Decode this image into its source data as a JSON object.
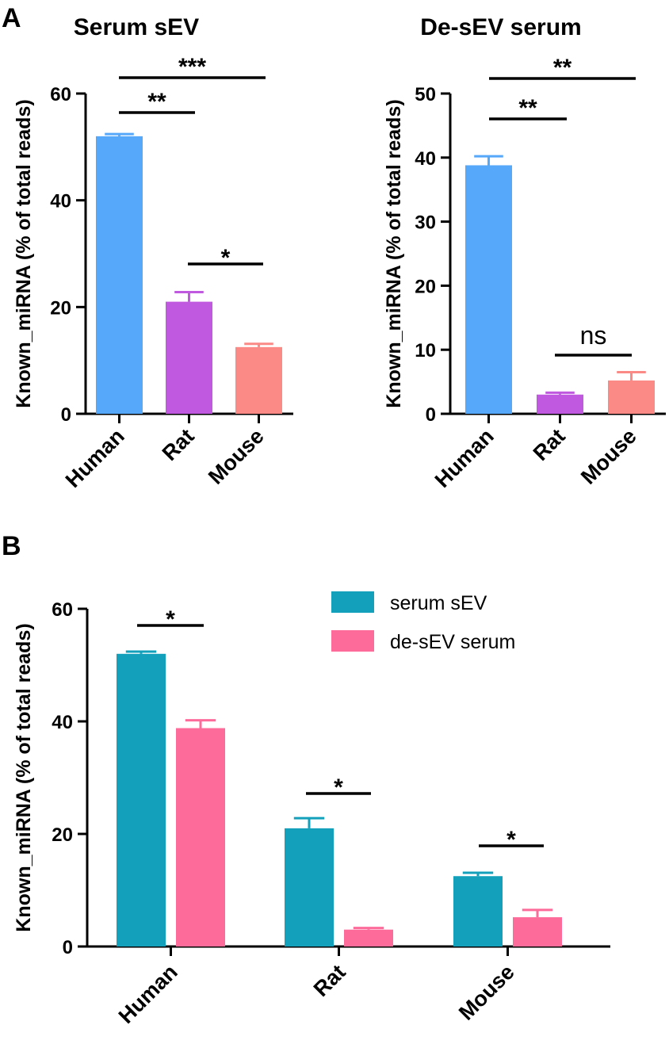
{
  "panels": {
    "a": "A",
    "b": "B"
  },
  "chart_data": [
    {
      "type": "bar",
      "title": "Serum sEV",
      "xlabel": "",
      "ylabel": "Known_miRNA (% of total reads)",
      "ylim": [
        0,
        60
      ],
      "yticks": [
        "0",
        "20",
        "40",
        "60"
      ],
      "categories": [
        "Human",
        "Rat",
        "Mouse"
      ],
      "values": [
        52,
        21,
        12.5
      ],
      "errors": [
        0.4,
        1.8,
        0.6
      ],
      "colors": [
        "#55a8fa",
        "#c058e0",
        "#fb8a86"
      ],
      "comparisons": [
        {
          "from": 0,
          "to": 1,
          "label": "**"
        },
        {
          "from": 0,
          "to": 2,
          "label": "***"
        },
        {
          "from": 1,
          "to": 2,
          "label": "*"
        }
      ]
    },
    {
      "type": "bar",
      "title": "De-sEV serum",
      "xlabel": "",
      "ylabel": "Known_miRNA (% of total reads)",
      "ylim": [
        0,
        50
      ],
      "yticks": [
        "0",
        "10",
        "20",
        "30",
        "40",
        "50"
      ],
      "categories": [
        "Human",
        "Rat",
        "Mouse"
      ],
      "values": [
        38.8,
        3.0,
        5.2
      ],
      "errors": [
        1.4,
        0.3,
        1.3
      ],
      "colors": [
        "#55a8fa",
        "#c058e0",
        "#fb8a86"
      ],
      "comparisons": [
        {
          "from": 0,
          "to": 1,
          "label": "**"
        },
        {
          "from": 0,
          "to": 2,
          "label": "**"
        },
        {
          "from": 1,
          "to": 2,
          "label": "ns"
        }
      ]
    },
    {
      "type": "bar",
      "title": "",
      "xlabel": "",
      "ylabel": "Known_miRNA (% of total reads)",
      "ylim": [
        0,
        60
      ],
      "yticks": [
        "0",
        "20",
        "40",
        "60"
      ],
      "categories": [
        "Human",
        "Rat",
        "Mouse"
      ],
      "series": [
        {
          "name": "serum sEV",
          "color": "#12a0bb",
          "values": [
            52,
            21,
            12.5
          ],
          "errors": [
            0.4,
            1.8,
            0.6
          ]
        },
        {
          "name": "de-sEV serum",
          "color": "#fd6b9b",
          "values": [
            38.8,
            3.0,
            5.2
          ],
          "errors": [
            1.4,
            0.3,
            1.3
          ]
        }
      ],
      "comparisons": [
        {
          "category": 0,
          "label": "*"
        },
        {
          "category": 1,
          "label": "*"
        },
        {
          "category": 2,
          "label": "*"
        }
      ],
      "legend": "top-right"
    }
  ]
}
